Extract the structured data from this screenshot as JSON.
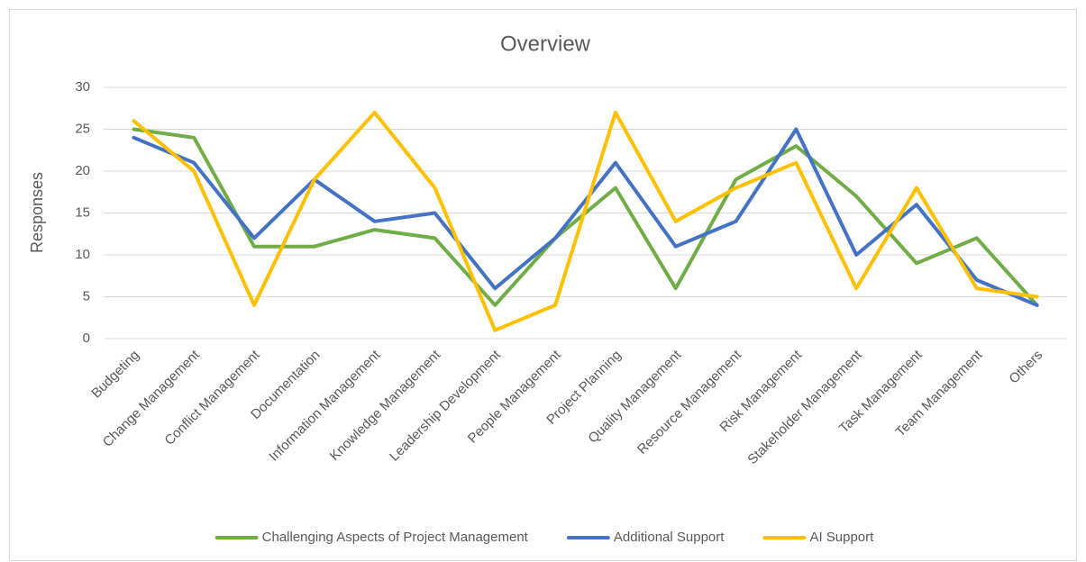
{
  "chart_data": {
    "type": "line",
    "title": "Overview",
    "y_label": "Responses",
    "categories": [
      "Budgeting",
      "Change Management",
      "Conflict Management",
      "Documentation",
      "Information Management",
      "Knowledge Management",
      "Leadership Development",
      "People Management",
      "Project Planning",
      "Quality Management",
      "Resource Management",
      "Risk Management",
      "Stakeholder Management",
      "Task Management",
      "Team Management",
      "Others"
    ],
    "series": [
      {
        "name": "Challenging Aspects of Project Management",
        "color": "#70ad47",
        "values": [
          25,
          24,
          11,
          11,
          13,
          12,
          4,
          12,
          18,
          6,
          19,
          23,
          17,
          9,
          12,
          4
        ]
      },
      {
        "name": "Additional Support",
        "color": "#4472c4",
        "values": [
          24,
          21,
          12,
          19,
          14,
          15,
          6,
          12,
          21,
          11,
          14,
          25,
          10,
          16,
          7,
          4
        ]
      },
      {
        "name": "AI Support",
        "color": "#ffc000",
        "values": [
          26,
          20,
          4,
          19,
          27,
          18,
          1,
          4,
          27,
          14,
          18,
          21,
          6,
          18,
          6,
          5
        ]
      }
    ],
    "ylim": [
      0,
      30
    ],
    "yticks": [
      0,
      5,
      10,
      15,
      20,
      25,
      30
    ],
    "grid": true,
    "legend": "bottom"
  }
}
